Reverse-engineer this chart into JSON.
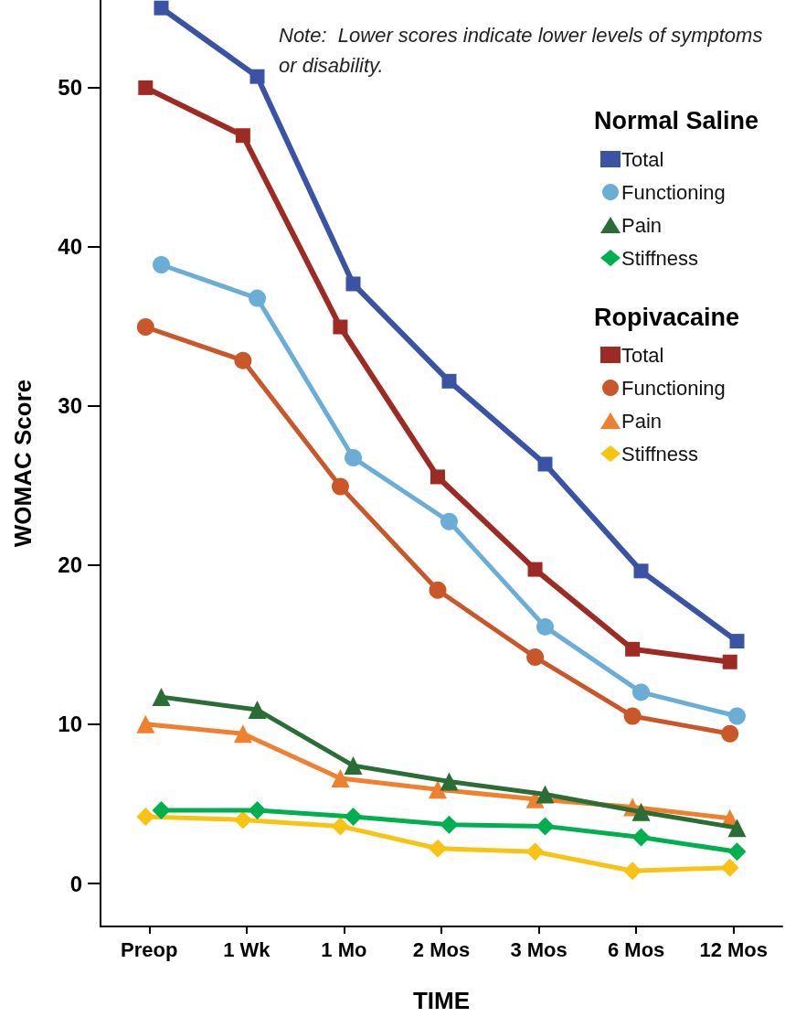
{
  "chart_data": {
    "type": "line",
    "xlabel": "TIME",
    "ylabel": "WOMAC Score",
    "categories": [
      "Preop",
      "1 Wk",
      "1 Mo",
      "2 Mos",
      "3 Mos",
      "6 Mos",
      "12 Mos"
    ],
    "ylim": [
      -2.7,
      55.5
    ],
    "yticks": [
      0,
      10,
      20,
      30,
      40,
      50
    ],
    "grid": false,
    "legend": "top right",
    "line_style": "solid",
    "annotations": [
      "Note:  Lower scores indicate lower levels of symptoms or disability.",
      "Normal Saline",
      "Ropivacaine"
    ],
    "series": [
      {
        "name": "Total",
        "color": "#3a53a4",
        "marker": "square",
        "values": [
          55.0,
          50.7,
          37.7,
          31.6,
          26.4,
          19.7,
          15.3
        ]
      },
      {
        "name": "Functioning",
        "color": "#6aaed8",
        "marker": "circle",
        "values": [
          38.9,
          36.8,
          26.8,
          22.8,
          16.2,
          12.1,
          10.6
        ]
      },
      {
        "name": "Pain",
        "color": "#2a6e35",
        "marker": "triangle",
        "values": [
          11.8,
          11.0,
          7.5,
          6.5,
          5.7,
          4.6,
          3.6
        ]
      },
      {
        "name": "Stiffness",
        "color": "#00b050",
        "marker": "diamond",
        "values": [
          4.7,
          4.7,
          4.3,
          3.8,
          3.7,
          3.0,
          2.1
        ]
      },
      {
        "name": "Total",
        "color": "#9e2a24",
        "marker": "square",
        "values": [
          50.0,
          47.0,
          35.0,
          25.6,
          19.8,
          14.8,
          14.0
        ]
      },
      {
        "name": "Functioning",
        "color": "#c9572a",
        "marker": "circle",
        "values": [
          35.0,
          32.9,
          25.0,
          18.5,
          14.3,
          10.6,
          9.5
        ]
      },
      {
        "name": "Pain",
        "color": "#ef8030",
        "marker": "triangle",
        "values": [
          10.1,
          9.5,
          6.7,
          6.0,
          5.4,
          4.9,
          4.2
        ]
      },
      {
        "name": "Stiffness",
        "color": "#f8c313",
        "marker": "diamond",
        "values": [
          4.3,
          4.1,
          3.7,
          2.3,
          2.1,
          0.9,
          1.1
        ]
      }
    ]
  }
}
